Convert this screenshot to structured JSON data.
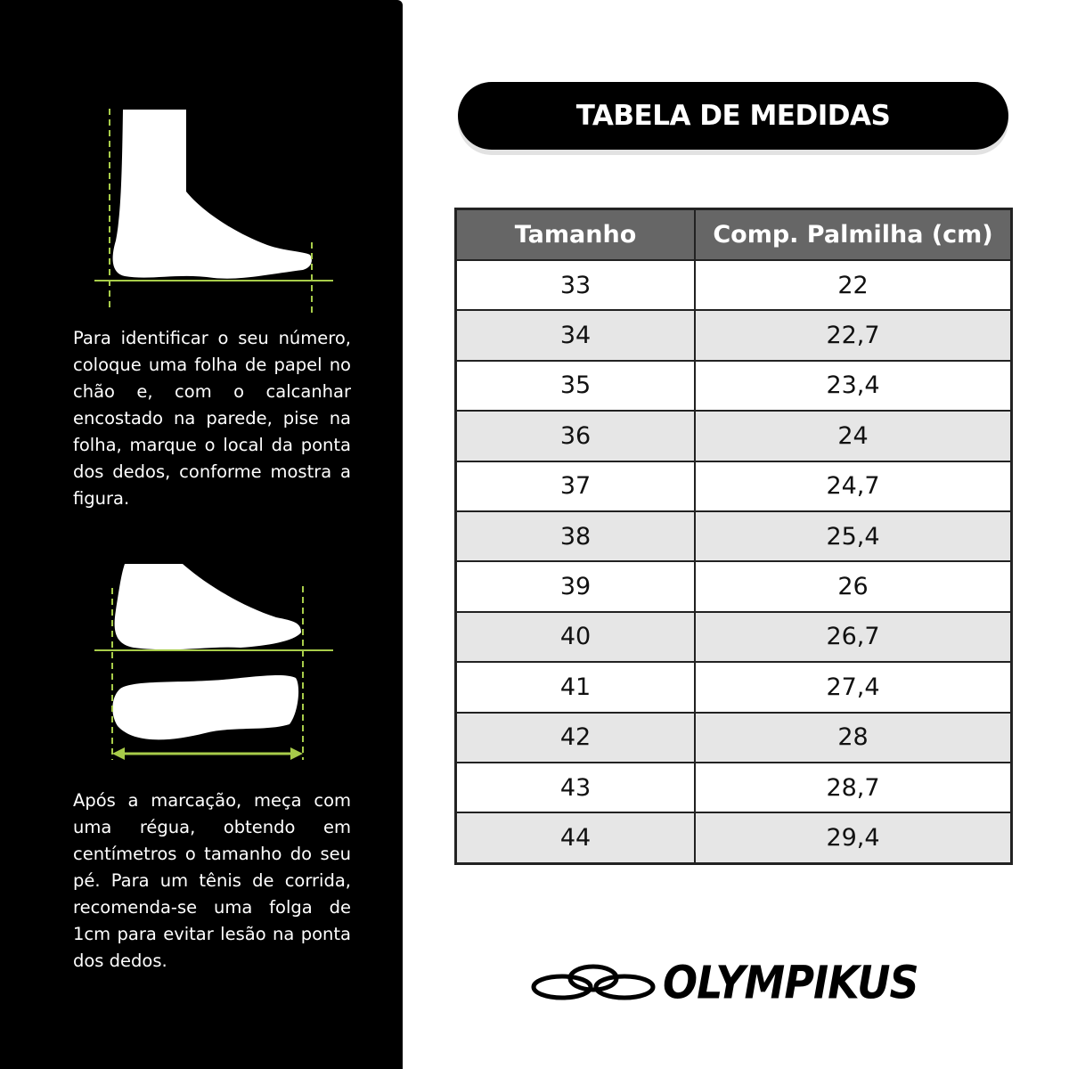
{
  "instructions": {
    "step1": "Para identificar o seu número, coloque uma folha de papel no chão e, com o calcanhar encostado na parede, pise na folha, marque o local da ponta dos dedos, conforme mostra a figura.",
    "step2": "Após a marcação, meça com uma régua, obtendo em centímetros o tamanho do seu pé. Para um tênis de corrida, recomenda-se uma folga de 1cm para evitar lesão na ponta dos dedos."
  },
  "title": "TABELA DE MEDIDAS",
  "table": {
    "headers": [
      "Tamanho",
      "Comp. Palmilha (cm)"
    ],
    "rows": [
      [
        "33",
        "22"
      ],
      [
        "34",
        "22,7"
      ],
      [
        "35",
        "23,4"
      ],
      [
        "36",
        "24"
      ],
      [
        "37",
        "24,7"
      ],
      [
        "38",
        "25,4"
      ],
      [
        "39",
        "26"
      ],
      [
        "40",
        "26,7"
      ],
      [
        "41",
        "27,4"
      ],
      [
        "42",
        "28"
      ],
      [
        "43",
        "28,7"
      ],
      [
        "44",
        "29,4"
      ]
    ]
  },
  "brand": "OLYMPIKUS",
  "colors": {
    "accent": "#a8cc4a",
    "panel": "#000000",
    "header": "#666666",
    "stripe": "#e6e6e6"
  }
}
